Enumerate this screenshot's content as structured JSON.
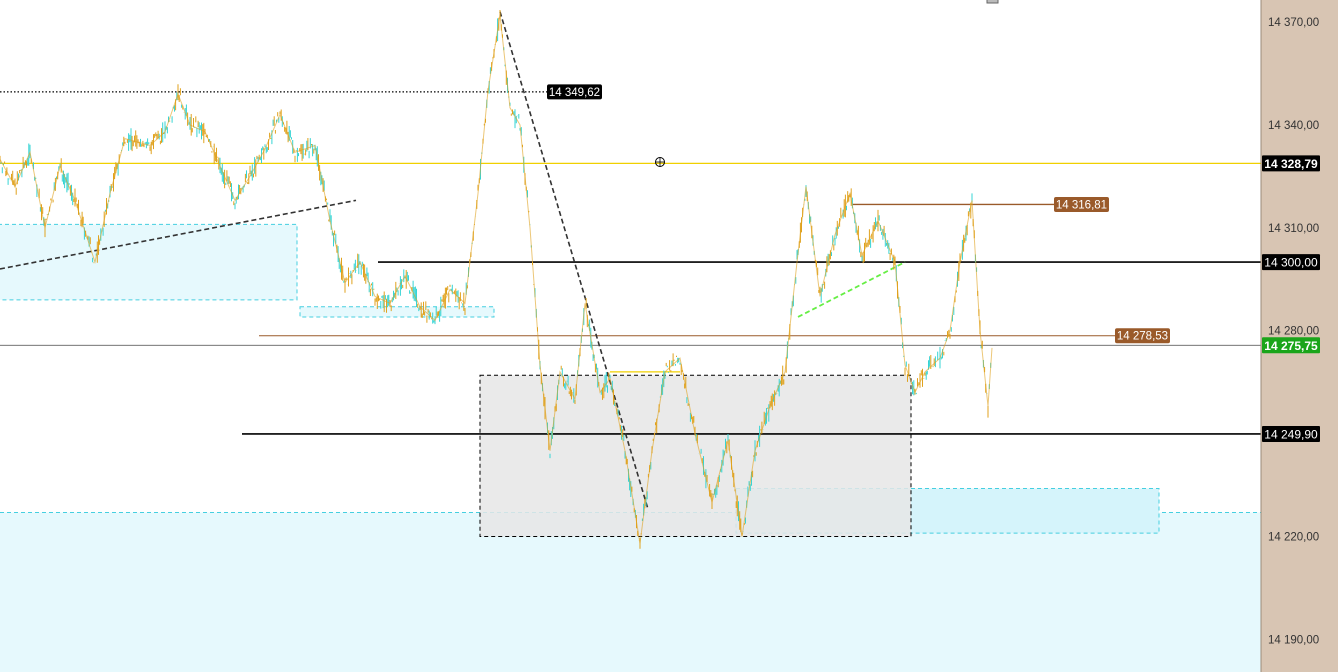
{
  "chart_data": {
    "type": "line",
    "instrument_series": [
      {
        "x": 0,
        "y": 14330
      },
      {
        "x": 15,
        "y": 14322
      },
      {
        "x": 30,
        "y": 14332
      },
      {
        "x": 45,
        "y": 14310
      },
      {
        "x": 60,
        "y": 14328
      },
      {
        "x": 75,
        "y": 14318
      },
      {
        "x": 95,
        "y": 14300
      },
      {
        "x": 110,
        "y": 14320
      },
      {
        "x": 125,
        "y": 14336
      },
      {
        "x": 150,
        "y": 14334
      },
      {
        "x": 165,
        "y": 14338
      },
      {
        "x": 178,
        "y": 14349
      },
      {
        "x": 190,
        "y": 14340
      },
      {
        "x": 205,
        "y": 14338
      },
      {
        "x": 220,
        "y": 14328
      },
      {
        "x": 235,
        "y": 14318
      },
      {
        "x": 250,
        "y": 14325
      },
      {
        "x": 265,
        "y": 14333
      },
      {
        "x": 280,
        "y": 14343
      },
      {
        "x": 295,
        "y": 14332
      },
      {
        "x": 315,
        "y": 14334
      },
      {
        "x": 330,
        "y": 14312
      },
      {
        "x": 345,
        "y": 14294
      },
      {
        "x": 360,
        "y": 14300
      },
      {
        "x": 375,
        "y": 14290
      },
      {
        "x": 390,
        "y": 14288
      },
      {
        "x": 405,
        "y": 14296
      },
      {
        "x": 420,
        "y": 14287
      },
      {
        "x": 435,
        "y": 14283
      },
      {
        "x": 450,
        "y": 14292
      },
      {
        "x": 465,
        "y": 14288
      },
      {
        "x": 478,
        "y": 14320
      },
      {
        "x": 488,
        "y": 14350
      },
      {
        "x": 500,
        "y": 14372
      },
      {
        "x": 510,
        "y": 14345
      },
      {
        "x": 520,
        "y": 14340
      },
      {
        "x": 530,
        "y": 14310
      },
      {
        "x": 540,
        "y": 14270
      },
      {
        "x": 550,
        "y": 14245
      },
      {
        "x": 560,
        "y": 14268
      },
      {
        "x": 575,
        "y": 14260
      },
      {
        "x": 585,
        "y": 14288
      },
      {
        "x": 600,
        "y": 14262
      },
      {
        "x": 610,
        "y": 14266
      },
      {
        "x": 625,
        "y": 14245
      },
      {
        "x": 640,
        "y": 14218
      },
      {
        "x": 652,
        "y": 14245
      },
      {
        "x": 665,
        "y": 14268
      },
      {
        "x": 680,
        "y": 14272
      },
      {
        "x": 695,
        "y": 14250
      },
      {
        "x": 712,
        "y": 14230
      },
      {
        "x": 728,
        "y": 14248
      },
      {
        "x": 742,
        "y": 14220
      },
      {
        "x": 755,
        "y": 14245
      },
      {
        "x": 770,
        "y": 14258
      },
      {
        "x": 785,
        "y": 14268
      },
      {
        "x": 797,
        "y": 14300
      },
      {
        "x": 806,
        "y": 14322
      },
      {
        "x": 820,
        "y": 14290
      },
      {
        "x": 835,
        "y": 14308
      },
      {
        "x": 850,
        "y": 14320
      },
      {
        "x": 862,
        "y": 14302
      },
      {
        "x": 878,
        "y": 14312
      },
      {
        "x": 895,
        "y": 14300
      },
      {
        "x": 905,
        "y": 14270
      },
      {
        "x": 915,
        "y": 14262
      },
      {
        "x": 925,
        "y": 14268
      },
      {
        "x": 940,
        "y": 14272
      },
      {
        "x": 950,
        "y": 14280
      },
      {
        "x": 960,
        "y": 14300
      },
      {
        "x": 972,
        "y": 14318
      },
      {
        "x": 980,
        "y": 14280
      },
      {
        "x": 988,
        "y": 14258
      },
      {
        "x": 992,
        "y": 14275
      }
    ],
    "y_axis_ticks": [
      "14 370,00",
      "14 340,00",
      "14 310,00",
      "14 280,00",
      "14 220,00",
      "14 190,00"
    ],
    "tick_values": [
      14370,
      14340,
      14310,
      14280,
      14220,
      14190
    ],
    "ylim": [
      14182,
      14377
    ],
    "price_tags": [
      {
        "id": "ytag-14328",
        "label": "14 328,79",
        "value": 14328.79,
        "bg": "#000000",
        "fg": "#ffffff",
        "bold": true
      },
      {
        "id": "ytag-14300",
        "label": "14 300,00",
        "value": 14300.0,
        "bg": "#000000",
        "fg": "#ffffff",
        "bold": false
      },
      {
        "id": "ytag-14275",
        "label": "14 275,75",
        "value": 14275.75,
        "bg": "#1aa51a",
        "fg": "#ffffff",
        "bold": true
      },
      {
        "id": "ytag-14249",
        "label": "14 249,90",
        "value": 14249.9,
        "bg": "#000000",
        "fg": "#ffffff",
        "bold": false
      }
    ],
    "inline_labels": [
      {
        "id": "label-14349",
        "label": "14 349,62",
        "value": 14349.62,
        "bg": "#000000",
        "fg": "#ffffff"
      },
      {
        "id": "label-14316",
        "label": "14 316,81",
        "value": 14316.81,
        "bg": "#9a5a2a",
        "fg": "#ffffff"
      },
      {
        "id": "label-14278",
        "label": "14 278,53",
        "value": 14278.53,
        "bg": "#9a5a2a",
        "fg": "#ffffff"
      }
    ],
    "grid": false,
    "colors": {
      "background": "#ffffff",
      "axis_panel": "#d8c5b3",
      "price_line_up": "#37d4d4",
      "price_line_down": "#e0a21e",
      "yellow_level": "#f0d000",
      "black_level": "#000000",
      "brown_level": "#9a5a2a",
      "zone_cyan": "#e6f9fd",
      "zone_cyan_border": "#45cfe0",
      "zone_grey": "#e6e6e6",
      "trend_green": "#66ee44"
    }
  }
}
